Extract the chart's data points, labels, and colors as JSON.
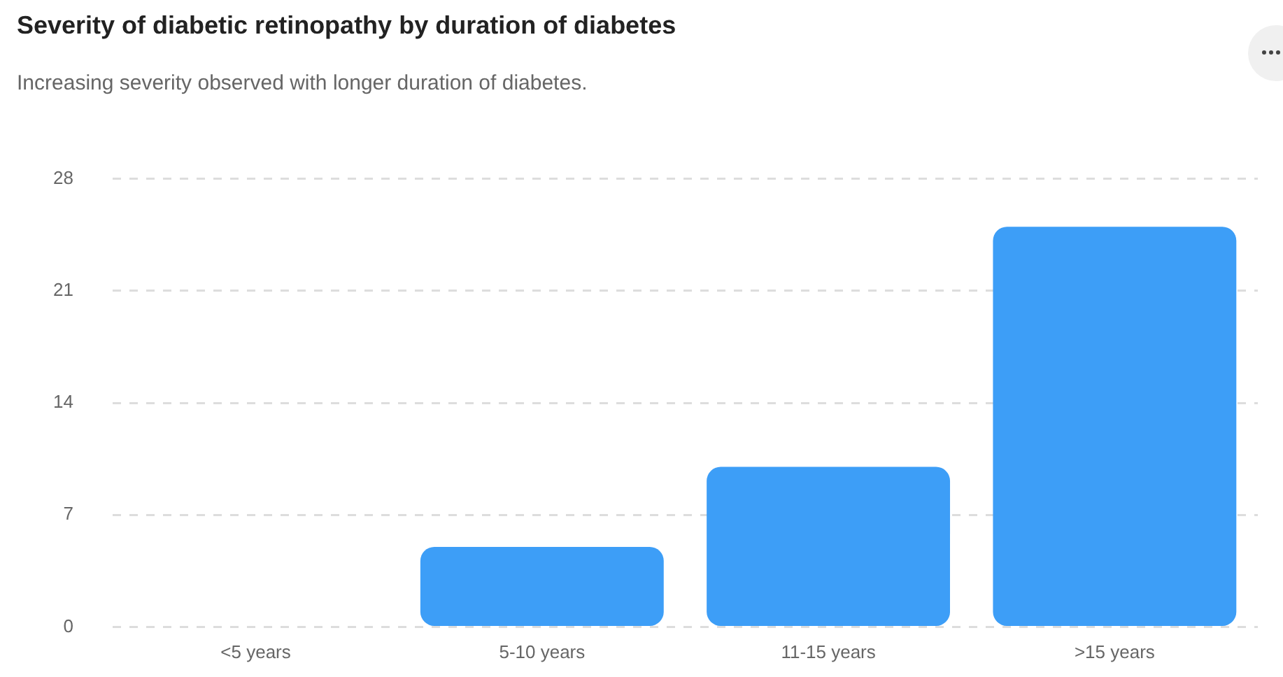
{
  "chart_data": {
    "type": "bar",
    "title": "Severity of diabetic retinopathy by duration of diabetes",
    "subtitle": "Increasing severity observed with longer duration of diabetes.",
    "categories": [
      "<5 years",
      "5-10 years",
      "11-15 years",
      ">15 years"
    ],
    "values": [
      0,
      5,
      10,
      25
    ],
    "color": "#3d9ef7",
    "ylim": [
      0,
      28
    ],
    "yticks": [
      0,
      7,
      14,
      21,
      28
    ],
    "grid": "y",
    "legend": false
  }
}
